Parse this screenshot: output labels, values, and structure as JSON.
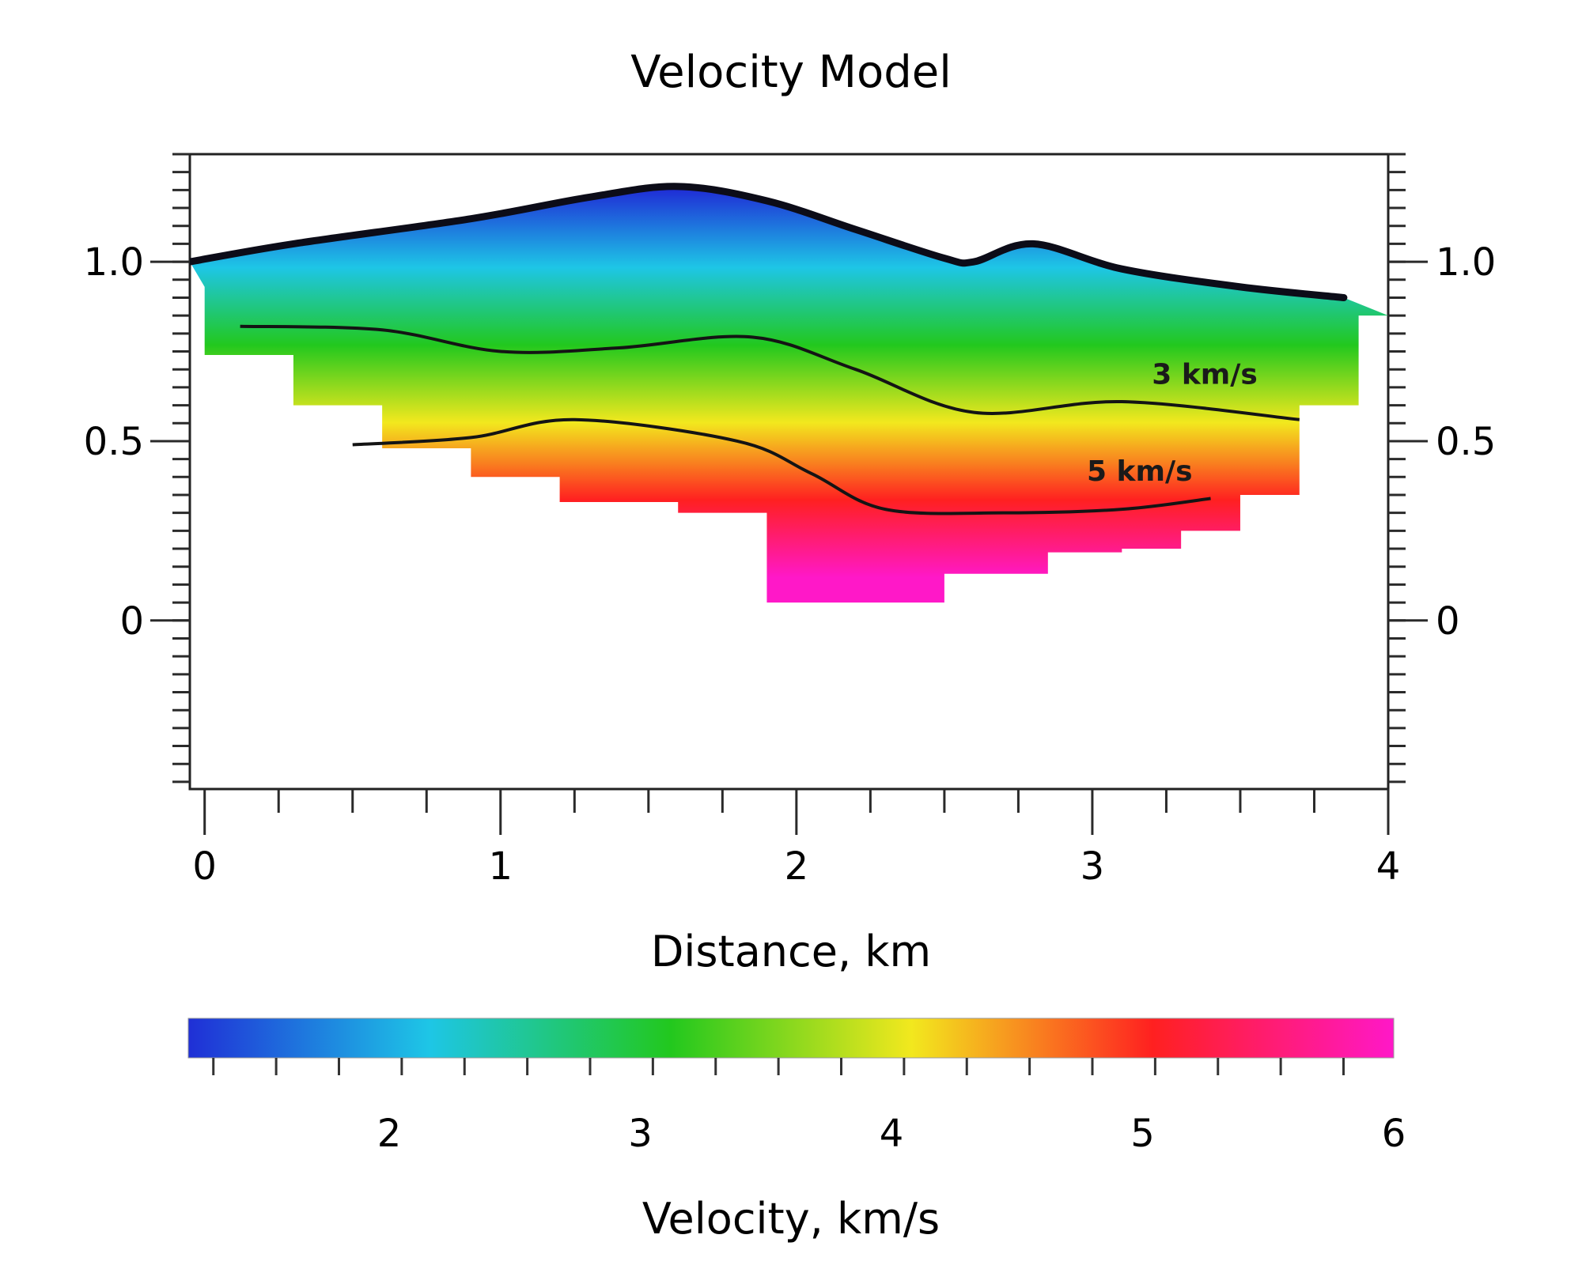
{
  "chart_data": {
    "type": "heatmap",
    "title": "Velocity Model",
    "xlabel": "Distance, km",
    "ylabel": "",
    "xlim": [
      -0.05,
      4.0
    ],
    "ylim": [
      -0.47,
      1.3
    ],
    "x_ticks": [
      "0",
      "1",
      "2",
      "3",
      "4"
    ],
    "x_tick_values": [
      0,
      1,
      2,
      3,
      4
    ],
    "y_ticks": [
      "0",
      "0.5",
      "1.0"
    ],
    "y_tick_values": [
      0,
      0.5,
      1.0
    ],
    "y_ticks_right": [
      "0",
      "0.5",
      "1.0"
    ],
    "colormap": [
      "#1f2fd6",
      "#1ec6e6",
      "#22c81e",
      "#f2e81e",
      "#ff2020",
      "#ff18c8"
    ],
    "surface": {
      "x": [
        -0.05,
        0.3,
        0.9,
        1.3,
        1.6,
        1.9,
        2.2,
        2.5,
        2.6,
        2.8,
        3.1,
        3.5,
        3.85
      ],
      "y": [
        1.0,
        1.05,
        1.12,
        1.18,
        1.21,
        1.17,
        1.09,
        1.01,
        1.0,
        1.05,
        0.98,
        0.93,
        0.9
      ]
    },
    "velocity_bottom": {
      "x": [
        0.0,
        0.3,
        0.6,
        0.9,
        1.2,
        1.6,
        1.9,
        2.1,
        2.5,
        2.85,
        3.1,
        3.3,
        3.5,
        3.7,
        3.9,
        4.0
      ],
      "y": [
        0.93,
        0.74,
        0.6,
        0.48,
        0.4,
        0.33,
        0.3,
        0.05,
        0.05,
        0.13,
        0.19,
        0.2,
        0.25,
        0.35,
        0.6,
        0.85
      ]
    },
    "contours": [
      {
        "label": "3 km/s",
        "x": [
          0.12,
          0.6,
          1.0,
          1.4,
          1.85,
          2.2,
          2.6,
          3.1,
          3.7
        ],
        "y": [
          0.82,
          0.81,
          0.75,
          0.76,
          0.79,
          0.7,
          0.58,
          0.61,
          0.56
        ]
      },
      {
        "label": "5 km/s",
        "x": [
          0.5,
          0.9,
          1.25,
          1.8,
          2.05,
          2.3,
          2.7,
          3.1,
          3.4
        ],
        "y": [
          0.49,
          0.51,
          0.56,
          0.5,
          0.41,
          0.31,
          0.3,
          0.31,
          0.34
        ]
      }
    ],
    "colorbar": {
      "vmin": 1.2,
      "vmax": 6.0,
      "ticks": [
        "2",
        "3",
        "4",
        "5",
        "6"
      ],
      "tick_values": [
        2,
        3,
        4,
        5,
        6
      ],
      "label": "Velocity, km/s"
    },
    "grid": false,
    "legend": "none"
  }
}
